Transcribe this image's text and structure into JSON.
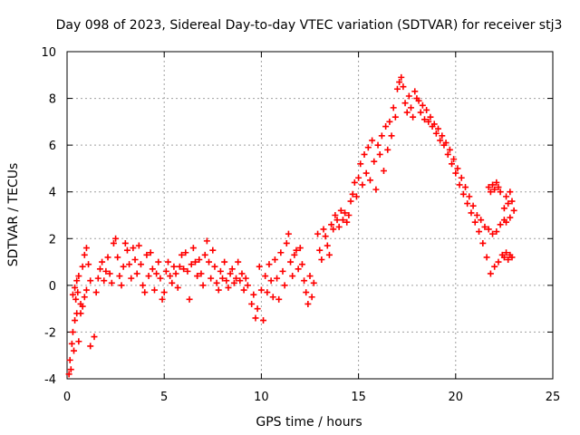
{
  "chart_data": {
    "type": "scatter",
    "title": "Day 098 of 2023, Sidereal Day-to-day VTEC variation (SDTVAR) for receiver stj3",
    "xlabel": "GPS time / hours",
    "ylabel": "SDTVAR / TECUs",
    "xlim": [
      0,
      25
    ],
    "ylim": [
      -4,
      10
    ],
    "xticks": [
      0,
      5,
      10,
      15,
      20,
      25
    ],
    "yticks": [
      -4,
      -2,
      0,
      2,
      4,
      6,
      8,
      10
    ],
    "grid": true,
    "marker": "+",
    "color": "#ff0000",
    "series": [
      {
        "name": "SDTVAR",
        "points": [
          [
            0.1,
            -3.8
          ],
          [
            0.15,
            -3.2
          ],
          [
            0.2,
            -3.6
          ],
          [
            0.25,
            -2.5
          ],
          [
            0.3,
            -2.0
          ],
          [
            0.35,
            -2.8
          ],
          [
            0.4,
            -1.5
          ],
          [
            0.45,
            -0.6
          ],
          [
            0.5,
            -1.2
          ],
          [
            0.55,
            -0.3
          ],
          [
            0.3,
            -0.4
          ],
          [
            0.4,
            -0.1
          ],
          [
            0.5,
            0.2
          ],
          [
            0.6,
            0.4
          ],
          [
            0.7,
            -0.8
          ],
          [
            0.8,
            0.8
          ],
          [
            0.9,
            1.3
          ],
          [
            1.0,
            1.6
          ],
          [
            1.1,
            0.9
          ],
          [
            1.2,
            0.2
          ],
          [
            0.6,
            -2.4
          ],
          [
            0.7,
            -1.2
          ],
          [
            0.8,
            -0.9
          ],
          [
            0.9,
            -0.5
          ],
          [
            1.0,
            -0.2
          ],
          [
            1.2,
            -2.6
          ],
          [
            1.4,
            -2.2
          ],
          [
            1.5,
            -0.3
          ],
          [
            1.6,
            0.3
          ],
          [
            1.7,
            0.7
          ],
          [
            1.8,
            1.0
          ],
          [
            1.9,
            0.2
          ],
          [
            2.0,
            0.6
          ],
          [
            2.1,
            1.2
          ],
          [
            2.2,
            0.5
          ],
          [
            2.3,
            0.1
          ],
          [
            2.4,
            1.8
          ],
          [
            2.5,
            2.0
          ],
          [
            2.6,
            1.2
          ],
          [
            2.7,
            0.4
          ],
          [
            2.8,
            0.0
          ],
          [
            2.9,
            0.8
          ],
          [
            3.0,
            1.8
          ],
          [
            3.1,
            1.5
          ],
          [
            3.2,
            0.9
          ],
          [
            3.3,
            0.3
          ],
          [
            3.4,
            1.6
          ],
          [
            3.5,
            1.1
          ],
          [
            3.6,
            0.5
          ],
          [
            3.7,
            1.7
          ],
          [
            3.8,
            0.9
          ],
          [
            3.9,
            0.0
          ],
          [
            4.0,
            -0.3
          ],
          [
            4.1,
            1.3
          ],
          [
            4.2,
            0.4
          ],
          [
            4.3,
            1.4
          ],
          [
            4.4,
            0.7
          ],
          [
            4.5,
            -0.2
          ],
          [
            4.6,
            0.5
          ],
          [
            4.7,
            1.0
          ],
          [
            4.8,
            0.3
          ],
          [
            4.9,
            -0.6
          ],
          [
            5.0,
            -0.3
          ],
          [
            5.1,
            0.6
          ],
          [
            5.2,
            1.0
          ],
          [
            5.3,
            0.4
          ],
          [
            5.4,
            0.1
          ],
          [
            5.5,
            0.8
          ],
          [
            5.6,
            0.5
          ],
          [
            5.7,
            -0.1
          ],
          [
            5.8,
            0.8
          ],
          [
            5.9,
            1.3
          ],
          [
            6.0,
            0.7
          ],
          [
            6.1,
            1.4
          ],
          [
            6.2,
            0.6
          ],
          [
            6.3,
            -0.6
          ],
          [
            6.4,
            0.9
          ],
          [
            6.5,
            1.6
          ],
          [
            6.6,
            1.0
          ],
          [
            6.7,
            0.4
          ],
          [
            6.8,
            1.1
          ],
          [
            6.9,
            0.5
          ],
          [
            7.0,
            0.0
          ],
          [
            7.1,
            1.3
          ],
          [
            7.2,
            1.9
          ],
          [
            7.3,
            1.0
          ],
          [
            7.4,
            0.3
          ],
          [
            7.5,
            1.5
          ],
          [
            7.6,
            0.8
          ],
          [
            7.7,
            0.1
          ],
          [
            7.8,
            -0.2
          ],
          [
            7.9,
            0.6
          ],
          [
            8.0,
            0.3
          ],
          [
            8.1,
            1.0
          ],
          [
            8.2,
            0.2
          ],
          [
            8.3,
            -0.1
          ],
          [
            8.4,
            0.5
          ],
          [
            8.5,
            0.7
          ],
          [
            8.6,
            0.1
          ],
          [
            8.7,
            0.3
          ],
          [
            8.8,
            1.0
          ],
          [
            8.9,
            0.2
          ],
          [
            9.0,
            0.5
          ],
          [
            9.1,
            -0.2
          ],
          [
            9.2,
            0.3
          ],
          [
            9.3,
            0.0
          ],
          [
            9.5,
            -0.8
          ],
          [
            9.6,
            -0.4
          ],
          [
            9.7,
            -1.4
          ],
          [
            9.8,
            -1.0
          ],
          [
            9.9,
            0.8
          ],
          [
            10.0,
            -0.2
          ],
          [
            10.1,
            -1.5
          ],
          [
            10.2,
            0.4
          ],
          [
            10.3,
            -0.3
          ],
          [
            10.4,
            0.9
          ],
          [
            10.5,
            0.2
          ],
          [
            10.6,
            -0.5
          ],
          [
            10.7,
            1.1
          ],
          [
            10.8,
            0.3
          ],
          [
            10.9,
            -0.6
          ],
          [
            11.0,
            1.4
          ],
          [
            11.1,
            0.6
          ],
          [
            11.2,
            0.0
          ],
          [
            11.3,
            1.8
          ],
          [
            11.4,
            2.2
          ],
          [
            11.5,
            1.0
          ],
          [
            11.6,
            0.4
          ],
          [
            11.7,
            1.3
          ],
          [
            11.8,
            1.5
          ],
          [
            11.9,
            0.7
          ],
          [
            12.0,
            1.6
          ],
          [
            12.1,
            0.9
          ],
          [
            12.2,
            0.2
          ],
          [
            12.3,
            -0.3
          ],
          [
            12.4,
            -0.8
          ],
          [
            12.5,
            0.4
          ],
          [
            12.6,
            -0.5
          ],
          [
            12.7,
            0.1
          ],
          [
            12.9,
            2.2
          ],
          [
            13.0,
            1.5
          ],
          [
            13.1,
            1.1
          ],
          [
            13.2,
            2.4
          ],
          [
            13.3,
            2.1
          ],
          [
            13.4,
            1.7
          ],
          [
            13.5,
            1.3
          ],
          [
            13.6,
            2.6
          ],
          [
            13.7,
            2.4
          ],
          [
            13.8,
            3.0
          ],
          [
            13.9,
            2.8
          ],
          [
            14.0,
            2.5
          ],
          [
            14.1,
            3.2
          ],
          [
            14.2,
            2.8
          ],
          [
            14.3,
            3.1
          ],
          [
            14.4,
            2.7
          ],
          [
            14.5,
            3.0
          ],
          [
            14.6,
            3.6
          ],
          [
            14.7,
            3.9
          ],
          [
            14.8,
            4.4
          ],
          [
            14.9,
            3.8
          ],
          [
            15.0,
            4.6
          ],
          [
            15.1,
            5.2
          ],
          [
            15.2,
            4.3
          ],
          [
            15.3,
            5.6
          ],
          [
            15.4,
            4.8
          ],
          [
            15.5,
            5.9
          ],
          [
            15.6,
            4.5
          ],
          [
            15.7,
            6.2
          ],
          [
            15.8,
            5.3
          ],
          [
            15.9,
            4.1
          ],
          [
            16.0,
            6.0
          ],
          [
            16.1,
            5.6
          ],
          [
            16.2,
            6.4
          ],
          [
            16.3,
            4.9
          ],
          [
            16.4,
            6.8
          ],
          [
            16.5,
            5.8
          ],
          [
            16.6,
            7.0
          ],
          [
            16.7,
            6.4
          ],
          [
            16.8,
            7.6
          ],
          [
            16.9,
            7.2
          ],
          [
            17.0,
            8.4
          ],
          [
            17.1,
            8.7
          ],
          [
            17.2,
            8.9
          ],
          [
            17.3,
            8.5
          ],
          [
            17.4,
            7.8
          ],
          [
            17.5,
            7.4
          ],
          [
            17.6,
            8.1
          ],
          [
            17.7,
            7.6
          ],
          [
            17.8,
            7.2
          ],
          [
            17.9,
            8.3
          ],
          [
            18.0,
            8.0
          ],
          [
            18.1,
            7.9
          ],
          [
            18.2,
            7.4
          ],
          [
            18.3,
            7.7
          ],
          [
            18.4,
            7.1
          ],
          [
            18.5,
            7.5
          ],
          [
            18.6,
            7.0
          ],
          [
            18.7,
            7.2
          ],
          [
            18.8,
            6.8
          ],
          [
            18.9,
            6.9
          ],
          [
            19.0,
            6.5
          ],
          [
            19.1,
            6.7
          ],
          [
            19.2,
            6.2
          ],
          [
            19.3,
            6.4
          ],
          [
            19.4,
            6.0
          ],
          [
            19.5,
            6.1
          ],
          [
            19.6,
            5.6
          ],
          [
            19.7,
            5.8
          ],
          [
            19.8,
            5.2
          ],
          [
            19.9,
            5.4
          ],
          [
            20.0,
            4.8
          ],
          [
            20.1,
            5.0
          ],
          [
            20.2,
            4.3
          ],
          [
            20.3,
            4.6
          ],
          [
            20.4,
            3.9
          ],
          [
            20.5,
            4.2
          ],
          [
            20.6,
            3.5
          ],
          [
            20.7,
            3.8
          ],
          [
            20.8,
            3.1
          ],
          [
            20.9,
            3.4
          ],
          [
            21.0,
            2.7
          ],
          [
            21.1,
            3.0
          ],
          [
            21.2,
            2.3
          ],
          [
            21.3,
            2.8
          ],
          [
            21.4,
            1.8
          ],
          [
            21.5,
            2.5
          ],
          [
            21.6,
            1.2
          ],
          [
            21.7,
            2.4
          ],
          [
            21.8,
            0.5
          ],
          [
            21.9,
            2.2
          ],
          [
            22.0,
            0.8
          ],
          [
            22.1,
            2.3
          ],
          [
            22.2,
            1.0
          ],
          [
            22.3,
            2.6
          ],
          [
            22.4,
            1.3
          ],
          [
            22.5,
            2.8
          ],
          [
            21.7,
            4.2
          ],
          [
            21.8,
            4.0
          ],
          [
            21.9,
            4.3
          ],
          [
            22.0,
            4.1
          ],
          [
            22.1,
            4.4
          ],
          [
            22.2,
            4.2
          ],
          [
            22.3,
            4.0
          ],
          [
            22.5,
            1.2
          ],
          [
            22.6,
            1.4
          ],
          [
            22.7,
            1.1
          ],
          [
            22.8,
            1.3
          ],
          [
            22.9,
            1.2
          ],
          [
            22.5,
            3.3
          ],
          [
            22.6,
            3.8
          ],
          [
            22.7,
            3.5
          ],
          [
            22.8,
            4.0
          ],
          [
            22.9,
            3.6
          ],
          [
            23.0,
            3.2
          ],
          [
            22.6,
            2.7
          ],
          [
            22.8,
            2.9
          ]
        ]
      }
    ]
  }
}
